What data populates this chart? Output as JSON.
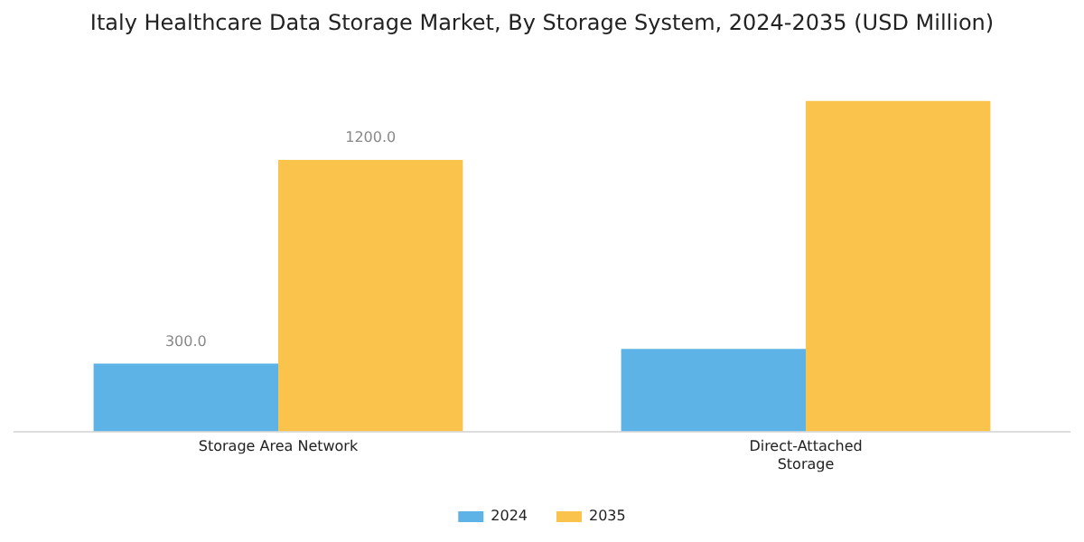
{
  "chart_data": {
    "type": "bar",
    "title": "Italy Healthcare Data Storage Market, By Storage System, 2024-2035 (USD Million)",
    "categories": [
      "Storage Area Network",
      "Direct-Attached Storage"
    ],
    "series": [
      {
        "name": "2024",
        "color": "#5db3e6",
        "values": [
          300,
          365
        ],
        "value_labels": [
          "300.0",
          null
        ]
      },
      {
        "name": "2035",
        "color": "#f9c34c",
        "values": [
          1200,
          1460
        ],
        "value_labels": [
          "1200.0",
          null
        ]
      }
    ],
    "legend": "bottom",
    "grid": false
  }
}
